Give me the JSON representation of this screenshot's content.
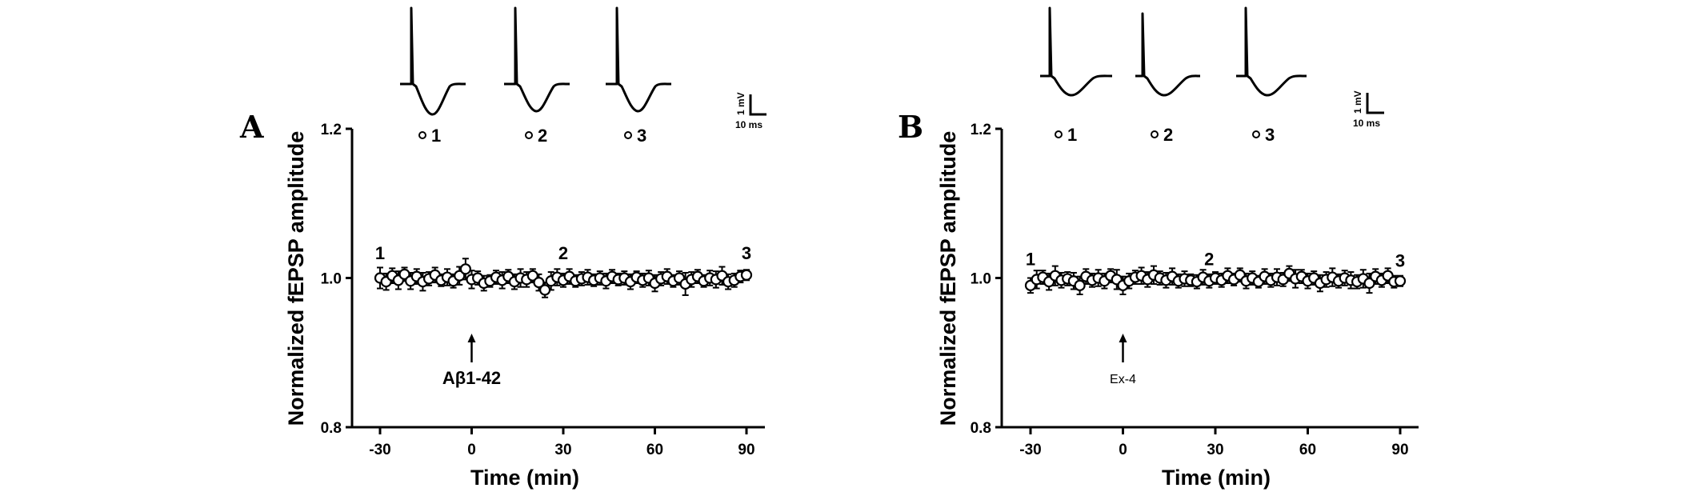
{
  "chart_data": [
    {
      "panel": "A",
      "type": "scatter",
      "ylabel": "Normalized fEPSP amplitude",
      "xlabel": "Time (min)",
      "xlim": [
        -36,
        101
      ],
      "ylim": [
        0.8,
        1.2
      ],
      "xticks": [
        -30,
        0,
        30,
        60,
        90
      ],
      "yticks": [
        0.8,
        1.0,
        1.2
      ],
      "xtick_labels": [
        "-30",
        "0",
        "30",
        "60",
        "90"
      ],
      "ytick_labels": [
        "0.8",
        "1.0",
        "1.2"
      ],
      "x": [
        -30,
        -28,
        -26,
        -24,
        -22,
        -20,
        -18,
        -16,
        -14,
        -12,
        -10,
        -8,
        -6,
        -4,
        -2,
        0,
        2,
        4,
        6,
        8,
        10,
        12,
        14,
        16,
        18,
        20,
        22,
        24,
        26,
        28,
        30,
        32,
        34,
        36,
        38,
        40,
        42,
        44,
        46,
        48,
        50,
        52,
        54,
        56,
        58,
        60,
        62,
        64,
        66,
        68,
        70,
        72,
        74,
        76,
        78,
        80,
        82,
        84,
        86,
        88,
        90
      ],
      "y": [
        1.0,
        0.995,
        1.003,
        0.997,
        1.005,
        0.996,
        1.002,
        0.995,
        0.999,
        1.004,
        0.997,
        1.001,
        0.996,
        1.003,
        1.012,
        0.998,
        1.0,
        0.993,
        0.996,
        1.001,
        0.997,
        1.002,
        0.995,
        1.0,
        0.998,
        1.003,
        0.994,
        0.984,
        0.996,
        1.001,
        0.997,
        1.002,
        0.996,
        0.999,
        1.001,
        0.997,
        1.0,
        0.996,
        1.002,
        0.998,
        1.0,
        0.995,
        1.001,
        0.997,
        1.0,
        0.993,
        0.999,
        1.002,
        0.996,
        1.0,
        0.992,
        0.998,
        1.002,
        0.996,
        1.0,
        0.998,
        1.003,
        0.995,
        0.997,
        1.002,
        1.004
      ],
      "err": [
        0.014,
        0.011,
        0.01,
        0.012,
        0.009,
        0.011,
        0.01,
        0.012,
        0.009,
        0.01,
        0.008,
        0.011,
        0.009,
        0.012,
        0.014,
        0.012,
        0.009,
        0.01,
        0.008,
        0.009,
        0.011,
        0.009,
        0.01,
        0.012,
        0.01,
        0.009,
        0.011,
        0.01,
        0.012,
        0.011,
        0.009,
        0.01,
        0.008,
        0.009,
        0.01,
        0.008,
        0.009,
        0.01,
        0.009,
        0.008,
        0.009,
        0.01,
        0.008,
        0.009,
        0.01,
        0.011,
        0.009,
        0.01,
        0.008,
        0.009,
        0.015,
        0.01,
        0.009,
        0.008,
        0.01,
        0.011,
        0.012,
        0.01,
        0.009,
        0.008,
        0.007
      ],
      "point_labels": [
        {
          "text": "1",
          "x": -30,
          "y": 1.025
        },
        {
          "text": "2",
          "x": 30,
          "y": 1.025
        },
        {
          "text": "3",
          "x": 90,
          "y": 1.025
        }
      ],
      "arrow": {
        "x": 0,
        "label": "Aβ1-42"
      },
      "traces": {
        "labels": [
          "1",
          "2",
          "3"
        ],
        "scale_v": "1 mV",
        "scale_t": "10 ms"
      }
    },
    {
      "panel": "B",
      "type": "scatter",
      "ylabel": "Normalized fEPSP amplitude",
      "xlabel": "Time (min)",
      "xlim": [
        -36,
        101
      ],
      "ylim": [
        0.8,
        1.2
      ],
      "xticks": [
        -30,
        0,
        30,
        60,
        90
      ],
      "yticks": [
        0.8,
        1.0,
        1.2
      ],
      "xtick_labels": [
        "-30",
        "0",
        "30",
        "60",
        "90"
      ],
      "ytick_labels": [
        "0.8",
        "1.0",
        "1.2"
      ],
      "x": [
        -30,
        -28,
        -26,
        -24,
        -22,
        -20,
        -18,
        -16,
        -14,
        -12,
        -10,
        -8,
        -6,
        -4,
        -2,
        0,
        2,
        4,
        6,
        8,
        10,
        12,
        14,
        16,
        18,
        20,
        22,
        24,
        26,
        28,
        30,
        32,
        34,
        36,
        38,
        40,
        42,
        44,
        46,
        48,
        50,
        52,
        54,
        56,
        58,
        60,
        62,
        64,
        66,
        68,
        70,
        72,
        74,
        76,
        78,
        80,
        82,
        84,
        86,
        88,
        90
      ],
      "y": [
        0.99,
        0.998,
        1.001,
        0.995,
        1.003,
        0.997,
        0.999,
        0.996,
        0.99,
        1.002,
        0.997,
        1.0,
        0.996,
        1.003,
        0.998,
        0.99,
        0.996,
        1.001,
        1.003,
        0.998,
        1.004,
        1.0,
        0.997,
        1.002,
        0.996,
        0.999,
        0.997,
        0.995,
        1.001,
        0.996,
        1.0,
        0.997,
        1.003,
        0.998,
        1.004,
        0.996,
        1.0,
        0.995,
        1.002,
        0.997,
        1.001,
        0.998,
        1.006,
        0.999,
        1.002,
        0.996,
        1.0,
        0.993,
        0.998,
        1.001,
        0.996,
        1.0,
        0.997,
        0.995,
        0.999,
        0.993,
        1.002,
        0.997,
        1.003,
        0.995,
        0.996
      ],
      "err": [
        0.01,
        0.012,
        0.009,
        0.011,
        0.013,
        0.01,
        0.009,
        0.011,
        0.012,
        0.01,
        0.009,
        0.011,
        0.01,
        0.009,
        0.013,
        0.012,
        0.01,
        0.009,
        0.011,
        0.01,
        0.012,
        0.009,
        0.01,
        0.011,
        0.009,
        0.01,
        0.008,
        0.009,
        0.01,
        0.009,
        0.008,
        0.009,
        0.01,
        0.008,
        0.009,
        0.01,
        0.009,
        0.008,
        0.01,
        0.009,
        0.011,
        0.009,
        0.01,
        0.012,
        0.009,
        0.01,
        0.009,
        0.011,
        0.01,
        0.012,
        0.009,
        0.01,
        0.011,
        0.009,
        0.012,
        0.013,
        0.01,
        0.009,
        0.01,
        0.008,
        0.007
      ],
      "point_labels": [
        {
          "text": "1",
          "x": -30,
          "y": 1.017
        },
        {
          "text": "2",
          "x": 28,
          "y": 1.017
        },
        {
          "text": "3",
          "x": 90,
          "y": 1.015
        }
      ],
      "arrow": {
        "x": 0,
        "label": "Ex-4"
      },
      "traces": {
        "labels": [
          "1",
          "2",
          "3"
        ],
        "scale_v": "1 mV",
        "scale_t": "10 ms"
      }
    }
  ]
}
